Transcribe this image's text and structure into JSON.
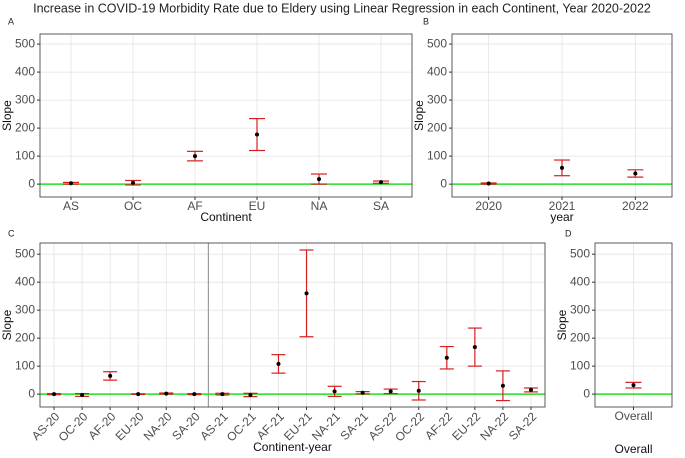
{
  "chart_data": [
    {
      "type": "errorbar",
      "title": "Increase in COVID-19 Morbidity Rate due to Eldery using Linear Regression in each Continent, Year 2020-2022",
      "panel": "A",
      "x_label": "Continent",
      "y_label": "Slope",
      "categories": [
        "AS",
        "OC",
        "AF",
        "EU",
        "NA",
        "SA"
      ],
      "values": [
        3,
        5,
        100,
        177,
        18,
        7
      ],
      "errors": [
        3,
        8,
        17,
        57,
        18,
        4
      ],
      "color": "#d62020",
      "ylim": [
        -46,
        536
      ],
      "yticks": [
        0,
        100,
        200,
        300,
        400,
        500
      ],
      "grid": true,
      "reference_line": {
        "value": 0,
        "color": "#22dd22"
      }
    },
    {
      "type": "errorbar",
      "panel": "B",
      "x_label": "year",
      "y_label": "Slope",
      "categories": [
        "2020",
        "2021",
        "2022"
      ],
      "values": [
        2,
        58,
        38
      ],
      "errors": [
        2,
        28,
        13
      ],
      "color": "#d62020",
      "ylim": [
        -46,
        536
      ],
      "yticks": [
        0,
        100,
        200,
        300,
        400,
        500
      ],
      "grid": true,
      "reference_line": {
        "value": 0,
        "color": "#22dd22"
      }
    },
    {
      "type": "errorbar",
      "panel": "C",
      "x_label": "Continent-year",
      "y_label": "Slope",
      "categories": [
        "AS-20",
        "OC-20",
        "AF-20",
        "EU-20",
        "NA-20",
        "SA-20",
        "AS-21",
        "OC-21",
        "AF-21",
        "EU-21",
        "NA-21",
        "SA-21",
        "AS-22",
        "OC-22",
        "AF-22",
        "EU-22",
        "NA-22",
        "SA-22"
      ],
      "values": [
        0,
        -3,
        65,
        0,
        2,
        0,
        0,
        -3,
        108,
        360,
        10,
        5,
        10,
        12,
        130,
        168,
        30,
        15
      ],
      "errors": [
        2,
        5,
        15,
        1,
        2,
        2,
        3,
        6,
        33,
        155,
        18,
        4,
        8,
        33,
        40,
        68,
        53,
        7
      ],
      "color": "#d62020",
      "ylim": [
        -46,
        540
      ],
      "yticks": [
        0,
        100,
        200,
        300,
        400,
        500
      ],
      "grid": true,
      "reference_line": {
        "value": 0,
        "color": "#22dd22"
      }
    },
    {
      "type": "errorbar",
      "panel": "D",
      "x_label": "Overall",
      "y_label": "Slope",
      "categories": [
        "Overall"
      ],
      "values": [
        32
      ],
      "errors": [
        10
      ],
      "color": "#d62020",
      "ylim": [
        -46,
        540
      ],
      "yticks": [
        0,
        100,
        200,
        300,
        400,
        500
      ],
      "grid": true,
      "reference_line": {
        "value": 0,
        "color": "#22dd22"
      }
    }
  ]
}
